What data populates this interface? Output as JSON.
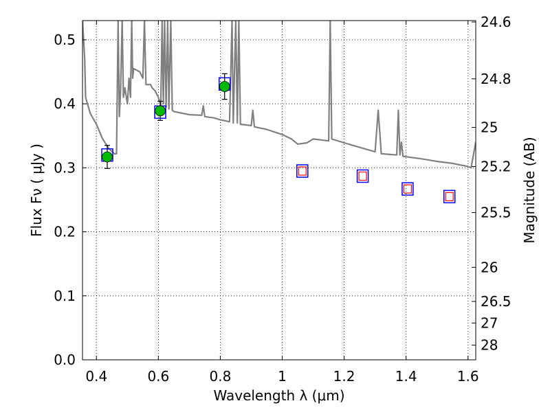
{
  "chart_data": {
    "type": "scatter",
    "title": "",
    "xlabel": "Wavelength  λ (μm)",
    "ylabel_left": "Flux  Fν  ( μJy )",
    "ylabel_right": "Magnitude (AB)",
    "xlim": [
      0.355,
      1.625
    ],
    "ylim": [
      0.0,
      0.53
    ],
    "grid": true,
    "x_ticks": [
      0.4,
      0.6,
      0.8,
      1.0,
      1.2,
      1.4,
      1.6
    ],
    "x_tick_labels": [
      "0.4",
      "0.6",
      "0.8",
      "1",
      "1.2",
      "1.4",
      "1.6"
    ],
    "y_ticks": [
      0.0,
      0.1,
      0.2,
      0.3,
      0.4,
      0.5
    ],
    "y_tick_labels": [
      "0.0",
      "0.1",
      "0.2",
      "0.3",
      "0.4",
      "0.5"
    ],
    "right_ticks": [
      {
        "flux": 0.5278,
        "label": "24.6"
      },
      {
        "flux": 0.439,
        "label": "24.8"
      },
      {
        "flux": 0.3631,
        "label": "25"
      },
      {
        "flux": 0.302,
        "label": "25.2"
      },
      {
        "flux": 0.2301,
        "label": "25.5"
      },
      {
        "flux": 0.1445,
        "label": "26"
      },
      {
        "flux": 0.0912,
        "label": "26.5"
      },
      {
        "flux": 0.0575,
        "label": "27"
      },
      {
        "flux": 0.0229,
        "label": "28"
      }
    ],
    "series": [
      {
        "marker": "square",
        "color": "#0000ff",
        "points": [
          [
            0.435,
            0.32
          ],
          [
            0.606,
            0.387
          ],
          [
            0.814,
            0.431
          ],
          [
            1.065,
            0.295
          ],
          [
            1.26,
            0.287
          ],
          [
            1.405,
            0.267
          ],
          [
            1.54,
            0.255
          ]
        ]
      },
      {
        "marker": "circle",
        "color": "#00bb00",
        "points": [
          [
            0.435,
            0.317
          ],
          [
            0.606,
            0.389
          ],
          [
            0.814,
            0.427
          ]
        ],
        "yerr": [
          0.018,
          0.015,
          0.02
        ]
      },
      {
        "marker": "small-square",
        "color": "#ff0000",
        "points": [
          [
            1.065,
            0.295
          ],
          [
            1.26,
            0.287
          ],
          [
            1.405,
            0.267
          ],
          [
            1.54,
            0.255
          ]
        ]
      },
      {
        "marker": "line",
        "color": "#808080",
        "points": [
          [
            0.355,
            0.53
          ],
          [
            0.362,
            0.47
          ],
          [
            0.365,
            0.41
          ],
          [
            0.38,
            0.385
          ],
          [
            0.4,
            0.368
          ],
          [
            0.42,
            0.345
          ],
          [
            0.44,
            0.33
          ],
          [
            0.458,
            0.322
          ],
          [
            0.465,
            0.322
          ],
          [
            0.47,
            0.53
          ],
          [
            0.474,
            0.38
          ],
          [
            0.478,
            0.42
          ],
          [
            0.483,
            0.53
          ],
          [
            0.487,
            0.41
          ],
          [
            0.492,
            0.425
          ],
          [
            0.5,
            0.4
          ],
          [
            0.505,
            0.44
          ],
          [
            0.51,
            0.41
          ],
          [
            0.514,
            0.53
          ],
          [
            0.517,
            0.44
          ],
          [
            0.52,
            0.455
          ],
          [
            0.54,
            0.45
          ],
          [
            0.55,
            0.44
          ],
          [
            0.555,
            0.53
          ],
          [
            0.56,
            0.43
          ],
          [
            0.575,
            0.43
          ],
          [
            0.58,
            0.425
          ],
          [
            0.59,
            0.42
          ],
          [
            0.6,
            0.41
          ],
          [
            0.608,
            0.398
          ],
          [
            0.612,
            0.53
          ],
          [
            0.616,
            0.4
          ],
          [
            0.62,
            0.53
          ],
          [
            0.625,
            0.395
          ],
          [
            0.63,
            0.53
          ],
          [
            0.634,
            0.392
          ],
          [
            0.64,
            0.53
          ],
          [
            0.645,
            0.39
          ],
          [
            0.65,
            0.388
          ],
          [
            0.68,
            0.385
          ],
          [
            0.7,
            0.383
          ],
          [
            0.74,
            0.382
          ],
          [
            0.745,
            0.397
          ],
          [
            0.75,
            0.38
          ],
          [
            0.78,
            0.378
          ],
          [
            0.8,
            0.375
          ],
          [
            0.82,
            0.373
          ],
          [
            0.83,
            0.372
          ],
          [
            0.838,
            0.53
          ],
          [
            0.842,
            0.37
          ],
          [
            0.85,
            0.53
          ],
          [
            0.855,
            0.37
          ],
          [
            0.86,
            0.53
          ],
          [
            0.865,
            0.368
          ],
          [
            0.9,
            0.366
          ],
          [
            0.905,
            0.39
          ],
          [
            0.91,
            0.364
          ],
          [
            0.95,
            0.36
          ],
          [
            1.0,
            0.352
          ],
          [
            1.03,
            0.345
          ],
          [
            1.05,
            0.337
          ],
          [
            1.08,
            0.339
          ],
          [
            1.1,
            0.345
          ],
          [
            1.15,
            0.342
          ],
          [
            1.155,
            0.53
          ],
          [
            1.16,
            0.345
          ],
          [
            1.2,
            0.339
          ],
          [
            1.25,
            0.332
          ],
          [
            1.3,
            0.325
          ],
          [
            1.31,
            0.39
          ],
          [
            1.32,
            0.322
          ],
          [
            1.37,
            0.32
          ],
          [
            1.375,
            0.39
          ],
          [
            1.38,
            0.32
          ],
          [
            1.385,
            0.34
          ],
          [
            1.39,
            0.318
          ],
          [
            1.45,
            0.314
          ],
          [
            1.5,
            0.31
          ],
          [
            1.55,
            0.307
          ],
          [
            1.6,
            0.302
          ],
          [
            1.61,
            0.3
          ],
          [
            1.625,
            0.34
          ]
        ]
      }
    ]
  }
}
